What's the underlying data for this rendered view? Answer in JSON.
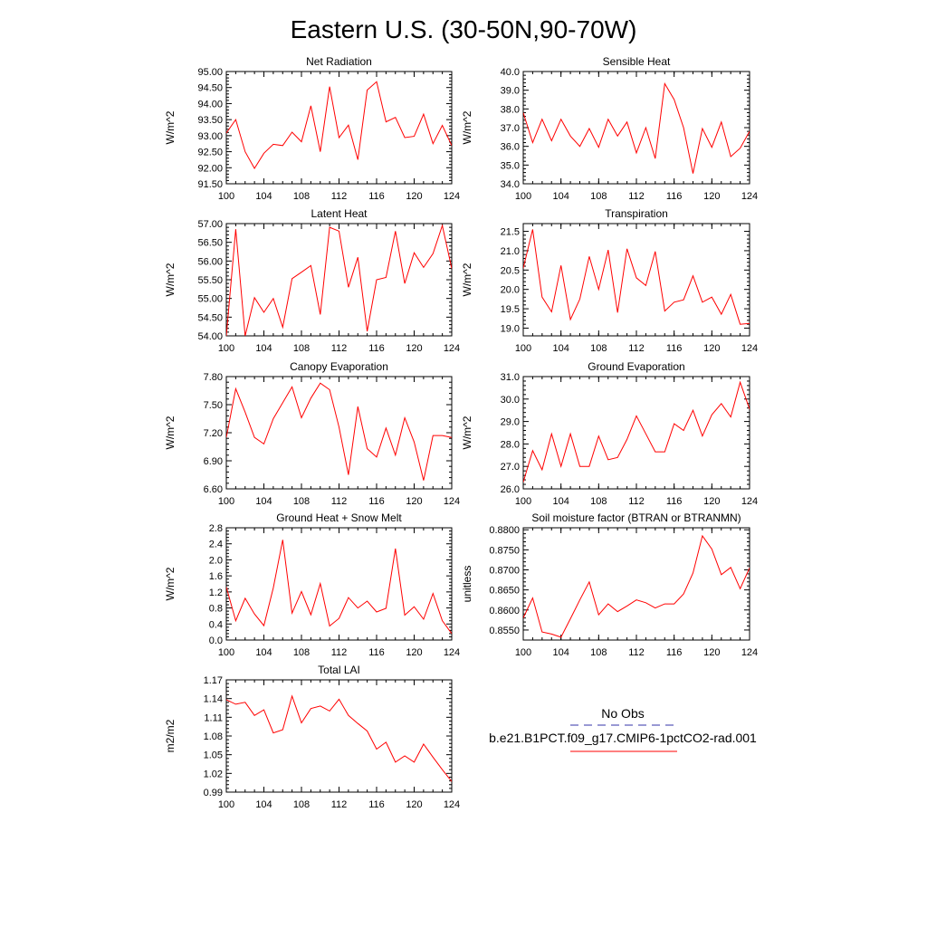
{
  "title": "Eastern U.S. (30-50N,90-70W)",
  "colors": {
    "model_line": "#ff0000",
    "obs_line": "#3333aa",
    "axes": "#000000"
  },
  "chart_data": [
    {
      "type": "line",
      "title": "Net Radiation",
      "ylabel": "W/m^2",
      "xlim": [
        100,
        124
      ],
      "ylim": [
        91.5,
        95.0
      ],
      "xticks": [
        100,
        104,
        108,
        112,
        116,
        120,
        124
      ],
      "yticks": [
        91.5,
        92.0,
        92.5,
        93.0,
        93.5,
        94.0,
        94.5,
        95.0
      ],
      "ytick_labels": [
        "91.50",
        "92.00",
        "92.50",
        "93.00",
        "93.50",
        "94.00",
        "94.50",
        "95.00"
      ],
      "series": [
        {
          "x": [
            100,
            101,
            102,
            103,
            104,
            105,
            106,
            107,
            108,
            109,
            110,
            111,
            112,
            113,
            114,
            115,
            116,
            117,
            118,
            119,
            120,
            121,
            122,
            123,
            124
          ],
          "values": [
            93.08,
            93.5,
            92.5,
            91.98,
            92.45,
            92.73,
            92.69,
            93.11,
            92.81,
            93.93,
            92.5,
            94.53,
            92.94,
            93.33,
            92.25,
            94.42,
            94.68,
            93.43,
            93.57,
            92.94,
            92.98,
            93.67,
            92.75,
            93.32,
            92.69
          ]
        }
      ]
    },
    {
      "type": "line",
      "title": "Sensible Heat",
      "ylabel": "W/m^2",
      "xlim": [
        100,
        124
      ],
      "ylim": [
        34.0,
        40.0
      ],
      "xticks": [
        100,
        104,
        108,
        112,
        116,
        120,
        124
      ],
      "yticks": [
        34,
        35,
        36,
        37,
        38,
        39,
        40
      ],
      "ytick_labels": [
        "34.0",
        "35.0",
        "36.0",
        "37.0",
        "38.0",
        "39.0",
        "40.0"
      ],
      "series": [
        {
          "x": [
            100,
            101,
            102,
            103,
            104,
            105,
            106,
            107,
            108,
            109,
            110,
            111,
            112,
            113,
            114,
            115,
            116,
            117,
            118,
            119,
            120,
            121,
            122,
            123,
            124
          ],
          "values": [
            37.8,
            36.2,
            37.45,
            36.3,
            37.45,
            36.55,
            36.0,
            36.95,
            35.95,
            37.45,
            36.55,
            37.3,
            35.65,
            37.0,
            35.35,
            39.35,
            38.5,
            37.0,
            34.55,
            36.95,
            35.95,
            37.3,
            35.45,
            35.9,
            36.8
          ]
        }
      ]
    },
    {
      "type": "line",
      "title": "Latent Heat",
      "ylabel": "W/m^2",
      "xlim": [
        100,
        124
      ],
      "ylim": [
        54.0,
        57.0
      ],
      "xticks": [
        100,
        104,
        108,
        112,
        116,
        120,
        124
      ],
      "yticks": [
        54.0,
        54.5,
        55.0,
        55.5,
        56.0,
        56.5,
        57.0
      ],
      "ytick_labels": [
        "54.00",
        "54.50",
        "55.00",
        "55.50",
        "56.00",
        "56.50",
        "57.00"
      ],
      "series": [
        {
          "x": [
            100,
            101,
            102,
            103,
            104,
            105,
            106,
            107,
            108,
            109,
            110,
            111,
            112,
            113,
            114,
            115,
            116,
            117,
            118,
            119,
            120,
            121,
            122,
            123,
            124
          ],
          "values": [
            54.0,
            56.85,
            54.0,
            55.02,
            54.63,
            55.0,
            54.23,
            55.53,
            55.7,
            55.88,
            54.57,
            56.9,
            56.8,
            55.3,
            56.1,
            54.12,
            55.5,
            55.56,
            56.8,
            55.4,
            56.22,
            55.83,
            56.2,
            56.95,
            55.8
          ]
        }
      ]
    },
    {
      "type": "line",
      "title": "Transpiration",
      "ylabel": "W/m^2",
      "xlim": [
        100,
        124
      ],
      "ylim": [
        18.8,
        21.7
      ],
      "xticks": [
        100,
        104,
        108,
        112,
        116,
        120,
        124
      ],
      "yticks": [
        19.0,
        19.5,
        20.0,
        20.5,
        21.0,
        21.5
      ],
      "ytick_labels": [
        "19.0",
        "19.5",
        "20.0",
        "20.5",
        "21.0",
        "21.5"
      ],
      "series": [
        {
          "x": [
            100,
            101,
            102,
            103,
            104,
            105,
            106,
            107,
            108,
            109,
            110,
            111,
            112,
            113,
            114,
            115,
            116,
            117,
            118,
            119,
            120,
            121,
            122,
            123,
            124
          ],
          "values": [
            20.55,
            21.55,
            19.8,
            19.42,
            20.62,
            19.22,
            19.75,
            20.85,
            20.0,
            21.02,
            19.4,
            21.05,
            20.3,
            20.1,
            20.98,
            19.44,
            19.67,
            19.73,
            20.35,
            19.67,
            19.8,
            19.36,
            19.87,
            19.1,
            19.12
          ]
        }
      ]
    },
    {
      "type": "line",
      "title": "Canopy Evaporation",
      "ylabel": "W/m^2",
      "xlim": [
        100,
        124
      ],
      "ylim": [
        6.6,
        7.8
      ],
      "xticks": [
        100,
        104,
        108,
        112,
        116,
        120,
        124
      ],
      "yticks": [
        6.6,
        6.9,
        7.2,
        7.5,
        7.8
      ],
      "ytick_labels": [
        "6.60",
        "6.90",
        "7.20",
        "7.50",
        "7.80"
      ],
      "series": [
        {
          "x": [
            100,
            101,
            102,
            103,
            104,
            105,
            106,
            107,
            108,
            109,
            110,
            111,
            112,
            113,
            114,
            115,
            116,
            117,
            118,
            119,
            120,
            121,
            122,
            123,
            124
          ],
          "values": [
            7.15,
            7.67,
            7.42,
            7.15,
            7.08,
            7.35,
            7.52,
            7.69,
            7.36,
            7.57,
            7.73,
            7.66,
            7.26,
            6.75,
            7.48,
            7.03,
            6.94,
            7.25,
            6.96,
            7.36,
            7.1,
            6.69,
            7.17,
            7.17,
            7.15
          ]
        }
      ]
    },
    {
      "type": "line",
      "title": "Ground Evaporation",
      "ylabel": "W/m^2",
      "xlim": [
        100,
        124
      ],
      "ylim": [
        26.0,
        31.0
      ],
      "xticks": [
        100,
        104,
        108,
        112,
        116,
        120,
        124
      ],
      "yticks": [
        26,
        27,
        28,
        29,
        30,
        31
      ],
      "ytick_labels": [
        "26.0",
        "27.0",
        "28.0",
        "29.0",
        "30.0",
        "31.0"
      ],
      "series": [
        {
          "x": [
            100,
            101,
            102,
            103,
            104,
            105,
            106,
            107,
            108,
            109,
            110,
            111,
            112,
            113,
            114,
            115,
            116,
            117,
            118,
            119,
            120,
            121,
            122,
            123,
            124
          ],
          "values": [
            26.3,
            27.7,
            26.85,
            28.45,
            27.0,
            28.45,
            27.0,
            27.0,
            28.35,
            27.3,
            27.4,
            28.2,
            29.25,
            28.45,
            27.65,
            27.65,
            28.9,
            28.6,
            29.5,
            28.35,
            29.3,
            29.8,
            29.2,
            30.75,
            29.55
          ]
        }
      ]
    },
    {
      "type": "line",
      "title": "Ground Heat + Snow Melt",
      "ylabel": "W/m^2",
      "xlim": [
        100,
        124
      ],
      "ylim": [
        0.0,
        2.8
      ],
      "xticks": [
        100,
        104,
        108,
        112,
        116,
        120,
        124
      ],
      "yticks": [
        0.0,
        0.4,
        0.8,
        1.2,
        1.6,
        2.0,
        2.4,
        2.8
      ],
      "ytick_labels": [
        "0.0",
        "0.4",
        "0.8",
        "1.2",
        "1.6",
        "2.0",
        "2.4",
        "2.8"
      ],
      "series": [
        {
          "x": [
            100,
            101,
            102,
            103,
            104,
            105,
            106,
            107,
            108,
            109,
            110,
            111,
            112,
            113,
            114,
            115,
            116,
            117,
            118,
            119,
            120,
            121,
            122,
            123,
            124
          ],
          "values": [
            1.32,
            0.48,
            1.04,
            0.65,
            0.36,
            1.3,
            2.5,
            0.67,
            1.21,
            0.63,
            1.41,
            0.35,
            0.54,
            1.06,
            0.8,
            0.97,
            0.7,
            0.79,
            2.28,
            0.62,
            0.83,
            0.52,
            1.16,
            0.48,
            0.16
          ]
        }
      ]
    },
    {
      "type": "line",
      "title": "Soil moisture factor (BTRAN or BTRANMN)",
      "ylabel": "unitless",
      "xlim": [
        100,
        124
      ],
      "ylim": [
        0.8525,
        0.8805
      ],
      "xticks": [
        100,
        104,
        108,
        112,
        116,
        120,
        124
      ],
      "yticks": [
        0.855,
        0.86,
        0.865,
        0.87,
        0.875,
        0.88
      ],
      "ytick_labels": [
        "0.8550",
        "0.8600",
        "0.8650",
        "0.8700",
        "0.8750",
        "0.8800"
      ],
      "series": [
        {
          "x": [
            100,
            101,
            102,
            103,
            104,
            105,
            106,
            107,
            108,
            109,
            110,
            111,
            112,
            113,
            114,
            115,
            116,
            117,
            118,
            119,
            120,
            121,
            122,
            123,
            124
          ],
          "values": [
            0.858,
            0.863,
            0.8545,
            0.854,
            0.8532,
            0.8578,
            0.8625,
            0.867,
            0.8588,
            0.8615,
            0.8596,
            0.861,
            0.8625,
            0.8618,
            0.8605,
            0.8615,
            0.8615,
            0.864,
            0.8692,
            0.8785,
            0.8752,
            0.8688,
            0.8706,
            0.8653,
            0.8705
          ]
        }
      ]
    },
    {
      "type": "line",
      "title": "Total LAI",
      "ylabel": "m2/m2",
      "xlim": [
        100,
        124
      ],
      "ylim": [
        0.99,
        1.17
      ],
      "xticks": [
        100,
        104,
        108,
        112,
        116,
        120,
        124
      ],
      "yticks": [
        0.99,
        1.02,
        1.05,
        1.08,
        1.11,
        1.14,
        1.17
      ],
      "ytick_labels": [
        "0.99",
        "1.02",
        "1.05",
        "1.08",
        "1.11",
        "1.14",
        "1.17"
      ],
      "series": [
        {
          "x": [
            100,
            101,
            102,
            103,
            104,
            105,
            106,
            107,
            108,
            109,
            110,
            111,
            112,
            113,
            114,
            115,
            116,
            117,
            118,
            119,
            120,
            121,
            122,
            123,
            124
          ],
          "values": [
            1.138,
            1.131,
            1.134,
            1.113,
            1.122,
            1.085,
            1.09,
            1.144,
            1.101,
            1.124,
            1.128,
            1.12,
            1.139,
            1.113,
            1.1,
            1.088,
            1.059,
            1.07,
            1.038,
            1.048,
            1.038,
            1.067,
            1.046,
            1.026,
            1.007
          ]
        }
      ]
    }
  ],
  "legend": {
    "obs_label": "No Obs",
    "model_label": "b.e21.B1PCT.f09_g17.CMIP6-1pctCO2-rad.001"
  }
}
